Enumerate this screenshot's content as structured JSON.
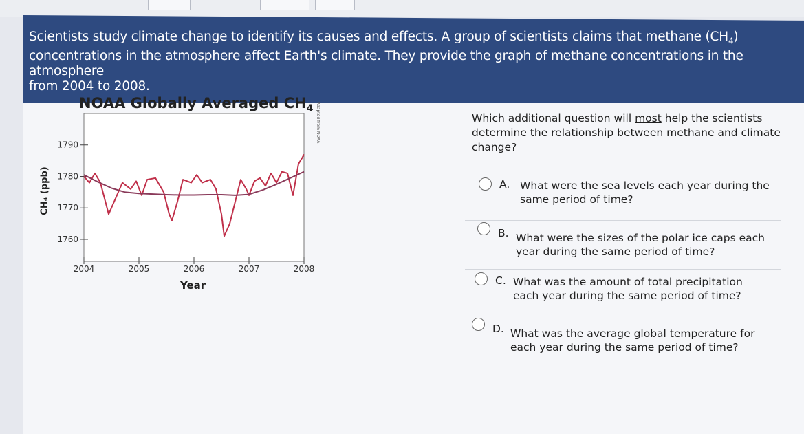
{
  "passage": {
    "line1": "Scientists study climate change to identify its causes and effects. A group of scientists claims that methane (CH",
    "line1_sub": "4",
    "line1_end": ")",
    "line2": "concentrations in the atmosphere affect Earth's climate. They provide the graph of methane concentrations in the atmosphere",
    "line3": "from 2004 to 2008."
  },
  "chart": {
    "title_main": "NOAA Globally Averaged CH",
    "title_sub": "4",
    "source_note": "Adapted from NOAA",
    "ylabel": "CH₄ (ppb)",
    "xlabel": "Year"
  },
  "chart_data": {
    "type": "line",
    "title": "NOAA Globally Averaged CH4",
    "xlabel": "Year",
    "ylabel": "CH4 (ppb)",
    "x_ticks": [
      "2004",
      "2005",
      "2006",
      "2007",
      "2008"
    ],
    "y_ticks": [
      "1760",
      "1770",
      "1780",
      "1790"
    ],
    "xlim": [
      2004,
      2008
    ],
    "ylim": [
      1753,
      1800
    ],
    "series": [
      {
        "color": "#c0304a",
        "x": [
          2004.0,
          2004.1,
          2004.2,
          2004.3,
          2004.45,
          2004.6,
          2004.7,
          2004.85,
          2004.95,
          2005.05,
          2005.15,
          2005.3,
          2005.45,
          2005.55,
          2005.6,
          2005.7,
          2005.8,
          2005.95,
          2006.05,
          2006.15,
          2006.3,
          2006.4,
          2006.5,
          2006.55,
          2006.65,
          2006.75,
          2006.85,
          2006.95,
          2007.0,
          2007.1,
          2007.2,
          2007.3,
          2007.4,
          2007.5,
          2007.6,
          2007.7,
          2007.8,
          2007.9,
          2007.97,
          2008.0
        ],
        "y": [
          1780.0,
          1778.0,
          1781.0,
          1778.0,
          1768.0,
          1774.0,
          1778.0,
          1776.0,
          1778.5,
          1774.0,
          1779.0,
          1779.5,
          1775.0,
          1768.0,
          1766.0,
          1772.0,
          1779.0,
          1778.0,
          1780.5,
          1778.0,
          1779.0,
          1776.0,
          1768.0,
          1761.0,
          1765.0,
          1772.0,
          1779.0,
          1776.0,
          1774.0,
          1778.5,
          1779.5,
          1777.0,
          1781.0,
          1778.0,
          1781.5,
          1781.0,
          1774.0,
          1784.0,
          1786.0,
          1787.0
        ]
      },
      {
        "color": "#8a3a5a",
        "x": [
          2004.0,
          2004.25,
          2004.5,
          2004.75,
          2005.0,
          2005.25,
          2005.5,
          2005.75,
          2006.0,
          2006.25,
          2006.5,
          2006.75,
          2007.0,
          2007.25,
          2007.5,
          2007.75,
          2008.0
        ],
        "y": [
          1780.5,
          1778.3,
          1776.3,
          1775.0,
          1774.6,
          1774.4,
          1774.2,
          1774.1,
          1774.1,
          1774.2,
          1774.2,
          1774.0,
          1774.3,
          1775.7,
          1777.5,
          1779.5,
          1781.5
        ]
      }
    ],
    "grid": false
  },
  "question": {
    "pre": "Which additional question will ",
    "emph": "most",
    "post": " help the scientists determine the relationship between methane and climate change?"
  },
  "options": [
    {
      "letter": "A.",
      "text": "What were the sea levels each year during the same period of time?"
    },
    {
      "letter": "B.",
      "text": "What were the sizes of the polar ice caps each year during the same period of time?"
    },
    {
      "letter": "C.",
      "text": "What was the amount of total precipitation each year during the same period of time?"
    },
    {
      "letter": "D.",
      "text": "What was the average global temperature for each year during the same period of time?"
    }
  ],
  "colors": {
    "banner": "#2e4a80",
    "series_red": "#c0304a",
    "series_trend": "#8a3a5a"
  }
}
